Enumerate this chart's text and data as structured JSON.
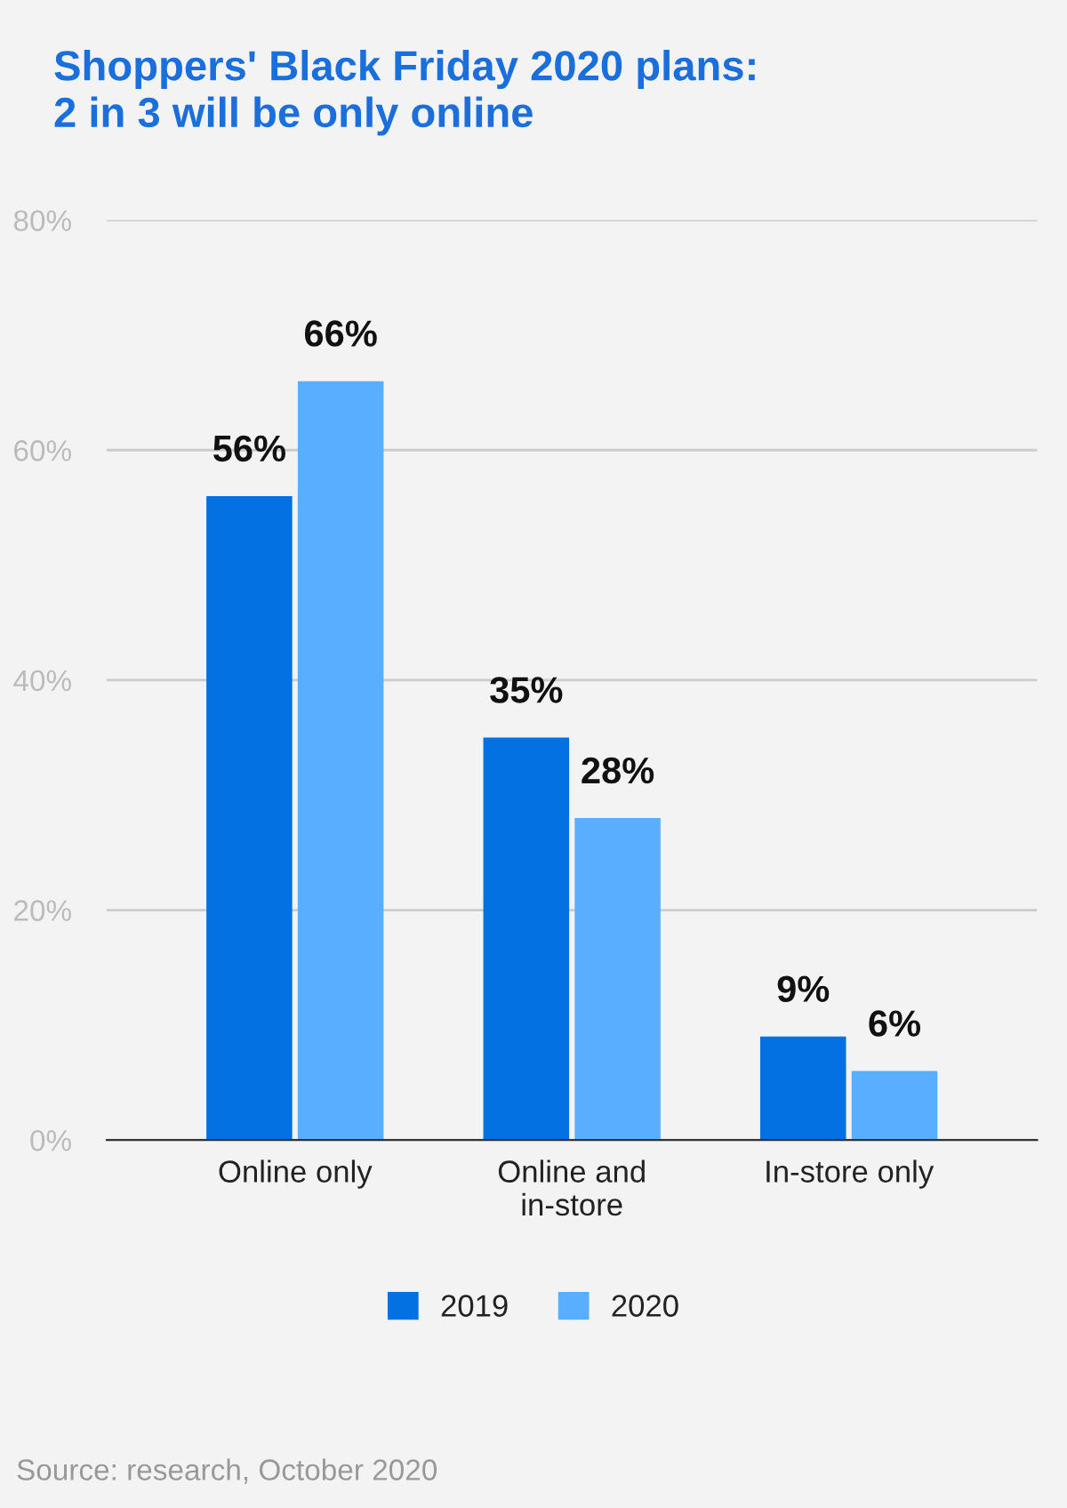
{
  "chart_data": {
    "type": "bar",
    "title": "Shoppers' Black Friday 2020 plans:\n2 in 3 will be only online",
    "categories": [
      "Online only",
      "Online and\nin-store",
      "In-store only"
    ],
    "series": [
      {
        "name": "2019",
        "color": "#0371e1",
        "values": [
          56,
          35,
          9
        ],
        "value_labels": [
          "56%",
          "35%",
          "9%"
        ]
      },
      {
        "name": "2020",
        "color": "#5aaeff",
        "values": [
          66,
          28,
          6
        ],
        "value_labels": [
          "66%",
          "28%",
          "6%"
        ]
      }
    ],
    "ylim": [
      0,
      80
    ],
    "yticks": [
      {
        "value": 0,
        "label": "0%"
      },
      {
        "value": 20,
        "label": "20%"
      },
      {
        "value": 40,
        "label": "40%"
      },
      {
        "value": 60,
        "label": "60%"
      },
      {
        "value": 80,
        "label": "80%"
      }
    ],
    "grid": "y",
    "legend": "bottom",
    "annotations": [
      "Source: research, October 2020"
    ]
  }
}
